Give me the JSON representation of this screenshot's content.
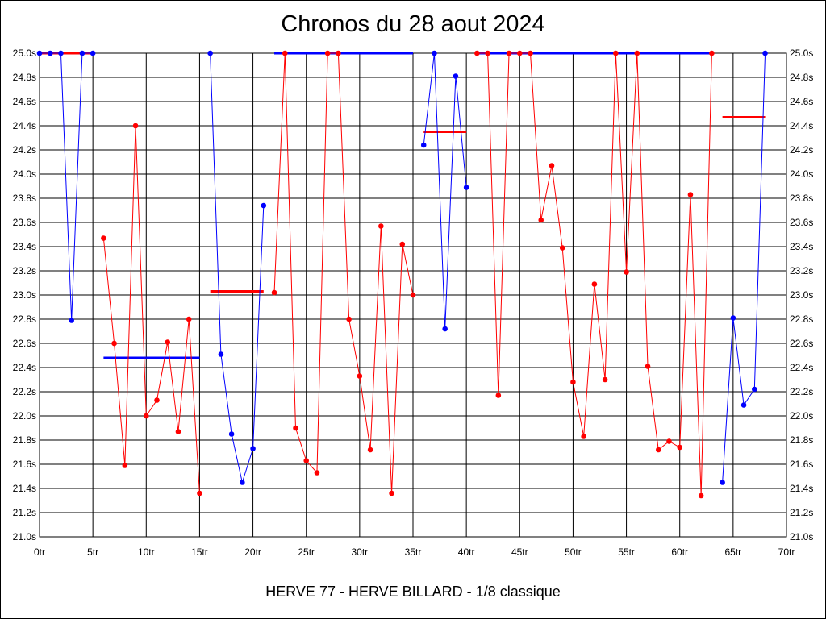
{
  "chart_data": {
    "type": "line",
    "title": "Chronos du 28 aout 2024",
    "subtitle": "HERVE 77 - HERVE BILLARD - 1/8 classique",
    "xlim": [
      0,
      70
    ],
    "ylim": [
      21.0,
      25.0
    ],
    "grid": true,
    "x_ticks": [
      {
        "value": 0,
        "label": "0tr"
      },
      {
        "value": 5,
        "label": "5tr"
      },
      {
        "value": 10,
        "label": "10tr"
      },
      {
        "value": 15,
        "label": "15tr"
      },
      {
        "value": 20,
        "label": "20tr"
      },
      {
        "value": 25,
        "label": "25tr"
      },
      {
        "value": 30,
        "label": "30tr"
      },
      {
        "value": 35,
        "label": "35tr"
      },
      {
        "value": 40,
        "label": "40tr"
      },
      {
        "value": 45,
        "label": "45tr"
      },
      {
        "value": 50,
        "label": "50tr"
      },
      {
        "value": 55,
        "label": "55tr"
      },
      {
        "value": 60,
        "label": "60tr"
      },
      {
        "value": 65,
        "label": "65tr"
      },
      {
        "value": 70,
        "label": "70tr"
      }
    ],
    "y_ticks": [
      {
        "value": 25.0,
        "label": "25.0s"
      },
      {
        "value": 24.8,
        "label": "24.8s"
      },
      {
        "value": 24.6,
        "label": "24.6s"
      },
      {
        "value": 24.4,
        "label": "24.4s"
      },
      {
        "value": 24.2,
        "label": "24.2s"
      },
      {
        "value": 24.0,
        "label": "24.0s"
      },
      {
        "value": 23.8,
        "label": "23.8s"
      },
      {
        "value": 23.6,
        "label": "23.6s"
      },
      {
        "value": 23.4,
        "label": "23.4s"
      },
      {
        "value": 23.2,
        "label": "23.2s"
      },
      {
        "value": 23.0,
        "label": "23.0s"
      },
      {
        "value": 22.8,
        "label": "22.8s"
      },
      {
        "value": 22.6,
        "label": "22.6s"
      },
      {
        "value": 22.4,
        "label": "22.4s"
      },
      {
        "value": 22.2,
        "label": "22.2s"
      },
      {
        "value": 22.0,
        "label": "22.0s"
      },
      {
        "value": 21.8,
        "label": "21.8s"
      },
      {
        "value": 21.6,
        "label": "21.6s"
      },
      {
        "value": 21.4,
        "label": "21.4s"
      },
      {
        "value": 21.2,
        "label": "21.2s"
      },
      {
        "value": 21.0,
        "label": "21.0s"
      }
    ],
    "colors": {
      "blue": "#0000ff",
      "red": "#ff0000",
      "grid": "#000000"
    },
    "series": [
      {
        "color": "blue",
        "points": [
          [
            0,
            25.0
          ],
          [
            1,
            25.0
          ],
          [
            2,
            25.0
          ],
          [
            3,
            22.79
          ],
          [
            4,
            25.0
          ],
          [
            5,
            25.0
          ]
        ]
      },
      {
        "color": "red",
        "points": [
          [
            6,
            23.47
          ],
          [
            7,
            22.6
          ],
          [
            8,
            21.59
          ],
          [
            9,
            24.4
          ],
          [
            10,
            22.0
          ],
          [
            11,
            22.13
          ],
          [
            12,
            22.61
          ],
          [
            13,
            21.87
          ],
          [
            14,
            22.8
          ],
          [
            15,
            21.36
          ]
        ]
      },
      {
        "color": "blue",
        "points": [
          [
            16,
            25.0
          ],
          [
            17,
            22.51
          ],
          [
            18,
            21.85
          ],
          [
            19,
            21.45
          ],
          [
            20,
            21.73
          ],
          [
            21,
            23.74
          ]
        ]
      },
      {
        "color": "red",
        "points": [
          [
            22,
            23.02
          ],
          [
            23,
            25.0
          ],
          [
            24,
            21.9
          ],
          [
            25,
            21.63
          ],
          [
            26,
            21.53
          ],
          [
            27,
            25.0
          ],
          [
            28,
            25.0
          ],
          [
            29,
            22.8
          ],
          [
            30,
            22.33
          ],
          [
            31,
            21.72
          ],
          [
            32,
            23.57
          ],
          [
            33,
            21.36
          ],
          [
            34,
            23.42
          ],
          [
            35,
            23.0
          ]
        ]
      },
      {
        "color": "blue",
        "points": [
          [
            36,
            24.24
          ],
          [
            37,
            25.0
          ],
          [
            38,
            22.72
          ],
          [
            39,
            24.81
          ],
          [
            40,
            23.89
          ]
        ]
      },
      {
        "color": "red",
        "points": [
          [
            41,
            25.0
          ],
          [
            42,
            25.0
          ],
          [
            43,
            22.17
          ],
          [
            44,
            25.0
          ],
          [
            45,
            25.0
          ],
          [
            46,
            25.0
          ],
          [
            47,
            23.62
          ],
          [
            48,
            24.07
          ],
          [
            49,
            23.39
          ],
          [
            50,
            22.28
          ],
          [
            51,
            21.83
          ],
          [
            52,
            23.09
          ],
          [
            53,
            22.3
          ],
          [
            54,
            25.0
          ],
          [
            55,
            23.19
          ],
          [
            56,
            25.0
          ],
          [
            57,
            22.41
          ],
          [
            58,
            21.72
          ],
          [
            59,
            21.79
          ],
          [
            60,
            21.74
          ],
          [
            61,
            23.83
          ],
          [
            62,
            21.34
          ],
          [
            63,
            25.0
          ]
        ]
      },
      {
        "color": "blue",
        "points": [
          [
            64,
            21.45
          ],
          [
            65,
            22.81
          ],
          [
            66,
            22.09
          ],
          [
            67,
            22.22
          ],
          [
            68,
            25.0
          ]
        ]
      }
    ],
    "average_lines": [
      {
        "color": "red",
        "x": [
          0,
          5
        ],
        "y": 25.0
      },
      {
        "color": "blue",
        "x": [
          6,
          15
        ],
        "y": 22.48
      },
      {
        "color": "red",
        "x": [
          16,
          21
        ],
        "y": 23.03
      },
      {
        "color": "blue",
        "x": [
          22,
          35
        ],
        "y": 25.0
      },
      {
        "color": "red",
        "x": [
          36,
          40
        ],
        "y": 24.35
      },
      {
        "color": "blue",
        "x": [
          41,
          63
        ],
        "y": 25.0
      },
      {
        "color": "red",
        "x": [
          64,
          68
        ],
        "y": 24.47
      }
    ]
  }
}
